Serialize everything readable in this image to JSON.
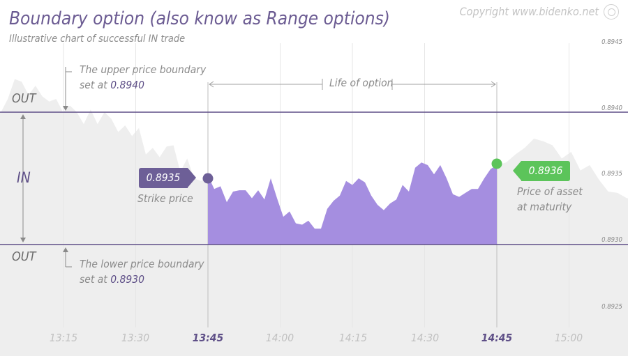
{
  "title": "Boundary option (also know as Range options)",
  "subtitle": "Illustrative chart of successful IN trade",
  "copyright": "Copyright www.bidenko.net",
  "zones": {
    "out_top": "OUT",
    "in": "IN",
    "out_bottom": "OUT"
  },
  "annotations": {
    "upper_line1": "The upper price boundary",
    "upper_prefix": "set at",
    "upper_value": "0.8940",
    "lower_line1": "The lower price boundary",
    "lower_prefix": "set at",
    "lower_value": "0.8930",
    "life": "Life of option",
    "strike_label": "Strike price",
    "strike_value": "0.8935",
    "maturity_line1": "Price of asset",
    "maturity_line2": "at maturity",
    "maturity_value": "0.8936"
  },
  "colors": {
    "fill_in": "#a58ee0",
    "strike": "#6d5f97",
    "maturity": "#5cc45a",
    "background_area": "#eeeeee",
    "boundary": "#5e4f87"
  },
  "chart_data": {
    "type": "area",
    "ylim": [
      0.8924,
      0.8946
    ],
    "yticks": [
      "0.8945",
      "0.8940",
      "0.8935",
      "0.8930",
      "0.8925"
    ],
    "xticks": [
      "13:15",
      "13:30",
      "13:45",
      "14:00",
      "14:15",
      "14:30",
      "14:45",
      "15:00"
    ],
    "xticks_bold": [
      "13:45",
      "14:45"
    ],
    "upper_boundary": 0.894,
    "lower_boundary": 0.893,
    "strike_time": "13:45",
    "strike_price": 0.8935,
    "maturity_time": "14:45",
    "maturity_price": 0.8936,
    "time_start": "13:02",
    "time_end": "15:12",
    "series_full_before": [
      0.894,
      0.8941,
      0.89425,
      0.89423,
      0.89413,
      0.8942,
      0.89412,
      0.89408,
      0.8941,
      0.894,
      0.89405,
      0.894,
      0.89391,
      0.89402,
      0.89391,
      0.894,
      0.89395,
      0.89385,
      0.8939,
      0.89382,
      0.89388,
      0.89368,
      0.89373,
      0.89366,
      0.89374,
      0.89375,
      0.89355,
      0.89365,
      0.8935,
      0.89348,
      0.89352
    ],
    "series_in_trade": [
      0.89352,
      0.89342,
      0.89344,
      0.89332,
      0.8934,
      0.89341,
      0.89341,
      0.89335,
      0.89341,
      0.89334,
      0.8935,
      0.89335,
      0.89321,
      0.89325,
      0.89316,
      0.89315,
      0.89318,
      0.89312,
      0.89312,
      0.89327,
      0.89333,
      0.89337,
      0.89348,
      0.89345,
      0.8935,
      0.89347,
      0.89337,
      0.8933,
      0.89326,
      0.89331,
      0.89334,
      0.89345,
      0.8934,
      0.89358,
      0.89362,
      0.8936,
      0.89353,
      0.8936,
      0.8935,
      0.89338,
      0.89336,
      0.89339,
      0.89342,
      0.89342,
      0.8935,
      0.89357,
      0.8936
    ],
    "series_full_after": [
      0.8936,
      0.89362,
      0.89368,
      0.89373,
      0.8938,
      0.89378,
      0.89375,
      0.89365,
      0.8937,
      0.89356,
      0.8936,
      0.89349,
      0.8934,
      0.89339,
      0.89335
    ]
  }
}
